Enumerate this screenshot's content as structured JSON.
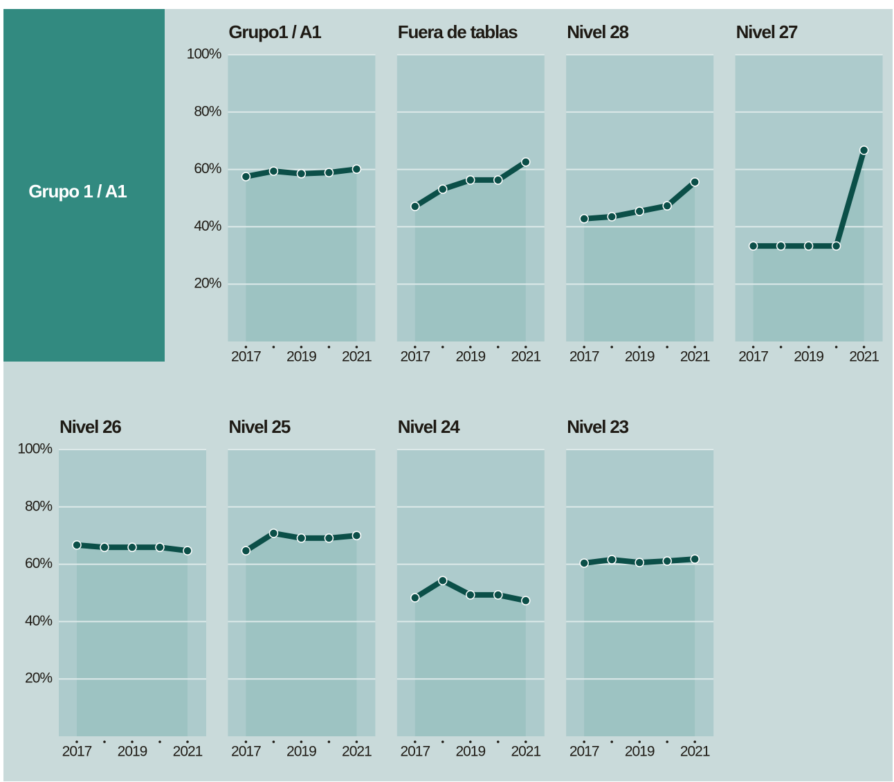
{
  "sidebar_label": "Grupo 1 / A1",
  "xlim": [
    2016.35,
    2021.675
  ],
  "xticks": [
    2017,
    2019,
    2021
  ],
  "ylim": [
    0,
    100
  ],
  "yticks": [
    {
      "value": 20,
      "label": "20%"
    },
    {
      "value": 40,
      "label": "40%"
    },
    {
      "value": 60,
      "label": "60%"
    },
    {
      "value": 80,
      "label": "80%"
    },
    {
      "value": 100,
      "label": "100%"
    }
  ],
  "line_color": "#0b4f48",
  "chart_data": [
    {
      "type": "line",
      "title": "Grupo1 / A1",
      "x": [
        2017,
        2018,
        2019,
        2020,
        2021
      ],
      "values": [
        57.5,
        59.4,
        58.5,
        58.9,
        60.1
      ]
    },
    {
      "type": "line",
      "title": "Fuera de tablas",
      "x": [
        2017,
        2018,
        2019,
        2020,
        2021
      ],
      "values": [
        47.1,
        53.1,
        56.3,
        56.3,
        62.6
      ]
    },
    {
      "type": "line",
      "title": "Nivel 28",
      "x": [
        2017,
        2018,
        2019,
        2020,
        2021
      ],
      "values": [
        42.8,
        43.5,
        45.4,
        47.3,
        55.6
      ]
    },
    {
      "type": "line",
      "title": "Nivel 27",
      "x": [
        2017,
        2018,
        2019,
        2020,
        2021
      ],
      "values": [
        33.3,
        33.3,
        33.3,
        33.3,
        66.7
      ]
    },
    {
      "type": "line",
      "title": "Nivel 26",
      "x": [
        2017,
        2018,
        2019,
        2020,
        2021
      ],
      "values": [
        66.7,
        65.9,
        65.9,
        65.9,
        64.7
      ]
    },
    {
      "type": "line",
      "title": "Nivel 25",
      "x": [
        2017,
        2018,
        2019,
        2020,
        2021
      ],
      "values": [
        64.7,
        70.8,
        69.1,
        69.1,
        70.0
      ]
    },
    {
      "type": "line",
      "title": "Nivel 24",
      "x": [
        2017,
        2018,
        2019,
        2020,
        2021
      ],
      "values": [
        48.3,
        54.3,
        49.3,
        49.3,
        47.3
      ]
    },
    {
      "type": "line",
      "title": "Nivel 23",
      "x": [
        2017,
        2018,
        2019,
        2020,
        2021
      ],
      "values": [
        60.4,
        61.6,
        60.6,
        61.1,
        61.8
      ]
    }
  ]
}
